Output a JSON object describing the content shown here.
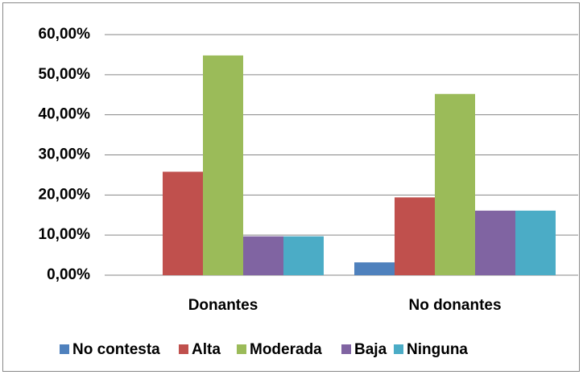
{
  "chart_data": {
    "type": "bar",
    "categories": [
      "Donantes",
      "No donantes"
    ],
    "series": [
      {
        "name": "No contesta",
        "color": "#4f81bd",
        "values": [
          0,
          3.2
        ]
      },
      {
        "name": "Alta",
        "color": "#c0504d",
        "values": [
          25.8,
          19.4
        ]
      },
      {
        "name": "Moderada",
        "color": "#9bbb59",
        "values": [
          54.8,
          45.2
        ]
      },
      {
        "name": "Baja",
        "color": "#8064a2",
        "values": [
          9.7,
          16.1
        ]
      },
      {
        "name": "Ninguna",
        "color": "#4bacc6",
        "values": [
          9.7,
          16.1
        ]
      }
    ],
    "ylim": [
      0,
      60
    ],
    "yticks": [
      {
        "value": 0,
        "label": "0,00%"
      },
      {
        "value": 10,
        "label": "10,00%"
      },
      {
        "value": 20,
        "label": "20,00%"
      },
      {
        "value": 30,
        "label": "30,00%"
      },
      {
        "value": 40,
        "label": "40,00%"
      },
      {
        "value": 50,
        "label": "50,00%"
      },
      {
        "value": 60,
        "label": "60,00%"
      }
    ],
    "grid": true,
    "legend": "bottom"
  }
}
